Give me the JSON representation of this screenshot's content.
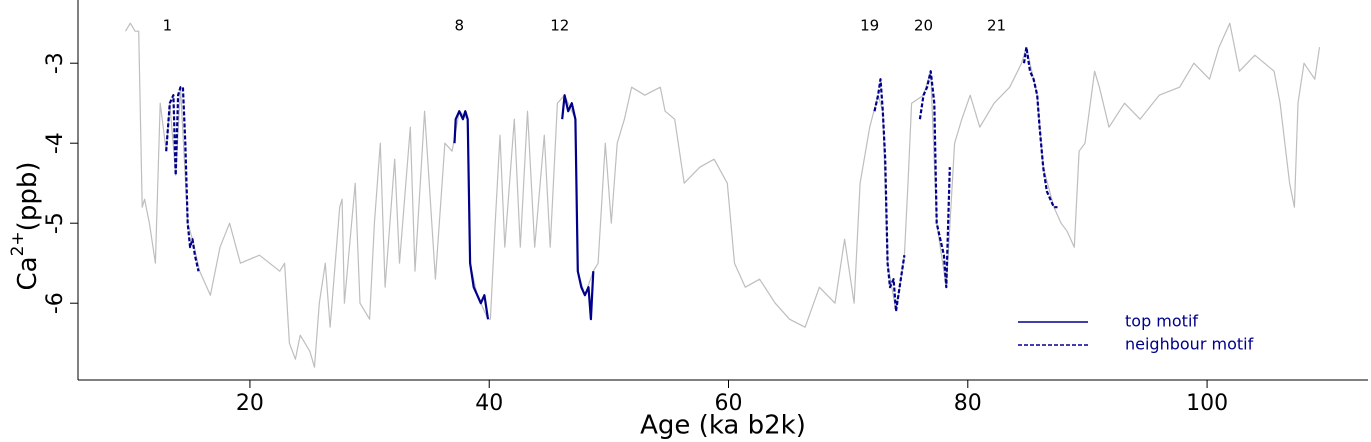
{
  "chart_data": {
    "type": "line",
    "xlabel": "Age (ka b2k)",
    "ylabel": [
      "Ca",
      "2+",
      "(ppb)"
    ],
    "xlim": [
      5.63,
      113.45
    ],
    "ylim": [
      -6.96,
      -2.21
    ],
    "xticks": [
      20,
      40,
      60,
      80,
      100
    ],
    "yticks": [
      -3,
      -4,
      -5,
      -6
    ],
    "legend": "bottom-right",
    "annotations": [
      {
        "text": "1",
        "x": 13.1
      },
      {
        "text": "8",
        "x": 37.5
      },
      {
        "text": "12",
        "x": 45.9
      },
      {
        "text": "19",
        "x": 71.8
      },
      {
        "text": "20",
        "x": 76.3
      },
      {
        "text": "21",
        "x": 82.4
      }
    ],
    "series": [
      {
        "color": "#bebebe",
        "dash": false,
        "x": [
          9.6,
          10.0,
          10.4,
          10.7,
          11.0,
          11.2,
          11.6,
          12.1,
          12.5,
          13.0,
          13.3,
          13.8,
          14.2,
          14.8,
          15.2,
          15.8,
          16.7,
          17.5,
          18.3,
          19.2,
          20.8,
          22.5,
          22.9,
          23.3,
          23.8,
          24.2,
          25.0,
          25.4,
          25.8,
          26.3,
          26.7,
          27.5,
          27.7,
          27.9,
          28.8,
          29.2,
          30.0,
          30.4,
          30.9,
          31.3,
          32.1,
          32.5,
          33.4,
          33.8,
          34.6,
          35.5,
          36.3,
          36.9,
          37.5,
          38.2,
          38.4,
          39.0,
          39.9,
          40.1,
          40.5,
          40.9,
          41.3,
          42.1,
          42.6,
          43.2,
          43.8,
          44.6,
          45.1,
          45.7,
          46.3,
          47.2,
          47.4,
          48.0,
          48.7,
          49.1,
          49.7,
          50.2,
          50.7,
          51.3,
          51.9,
          53.0,
          54.3,
          54.7,
          55.5,
          56.3,
          57.6,
          58.8,
          59.9,
          60.5,
          61.4,
          62.6,
          63.9,
          65.1,
          66.4,
          67.6,
          68.9,
          69.7,
          70.5,
          71.0,
          71.8,
          72.5,
          72.9,
          73.3,
          74.0,
          74.7,
          75.0,
          75.3,
          76.3,
          76.9,
          77.4,
          78.2,
          78.9,
          79.5,
          80.2,
          81.0,
          82.2,
          83.5,
          84.5,
          84.9,
          85.8,
          86.3,
          87.2,
          87.8,
          88.3,
          88.9,
          89.3,
          89.8,
          90.6,
          91.0,
          91.8,
          93.1,
          94.4,
          96.0,
          97.7,
          98.9,
          100.2,
          101.0,
          101.9,
          102.7,
          104.0,
          104.8,
          105.6,
          106.1,
          106.9,
          107.3,
          107.6,
          108.1,
          109.0,
          109.4
        ],
        "values": [
          -2.6,
          -2.5,
          -2.6,
          -2.6,
          -4.8,
          -4.7,
          -5.0,
          -5.5,
          -3.5,
          -4.1,
          -3.5,
          -4.4,
          -3.3,
          -5.0,
          -5.2,
          -5.6,
          -5.9,
          -5.3,
          -5.0,
          -5.5,
          -5.4,
          -5.6,
          -5.5,
          -6.5,
          -6.7,
          -6.4,
          -6.6,
          -6.8,
          -6.0,
          -5.5,
          -6.3,
          -4.8,
          -4.7,
          -6.0,
          -4.5,
          -6.0,
          -6.2,
          -5.0,
          -4.0,
          -5.8,
          -4.2,
          -5.5,
          -3.8,
          -5.6,
          -3.6,
          -5.7,
          -4.0,
          -4.1,
          -3.6,
          -3.7,
          -5.5,
          -5.9,
          -6.2,
          -6.2,
          -5.0,
          -3.9,
          -5.3,
          -3.7,
          -5.3,
          -3.6,
          -5.3,
          -3.9,
          -5.3,
          -3.5,
          -3.4,
          -3.7,
          -5.6,
          -5.9,
          -5.6,
          -5.5,
          -4.0,
          -5.0,
          -4.0,
          -3.7,
          -3.3,
          -3.4,
          -3.3,
          -3.6,
          -3.7,
          -4.5,
          -4.3,
          -4.2,
          -4.5,
          -5.5,
          -5.8,
          -5.7,
          -6.0,
          -6.2,
          -6.3,
          -5.8,
          -6.0,
          -5.2,
          -6.0,
          -4.5,
          -3.8,
          -3.4,
          -3.6,
          -5.5,
          -6.1,
          -5.4,
          -4.5,
          -3.5,
          -3.4,
          -3.1,
          -5.0,
          -5.8,
          -4.0,
          -3.7,
          -3.4,
          -3.8,
          -3.5,
          -3.3,
          -3.0,
          -2.8,
          -3.4,
          -4.3,
          -4.8,
          -5.0,
          -5.1,
          -5.3,
          -4.1,
          -4.0,
          -3.1,
          -3.3,
          -3.8,
          -3.5,
          -3.7,
          -3.4,
          -3.3,
          -3.0,
          -3.2,
          -2.8,
          -2.5,
          -3.1,
          -2.9,
          -3.0,
          -3.1,
          -3.5,
          -4.5,
          -4.8,
          -3.5,
          -3.0,
          -3.2,
          -2.8
        ]
      },
      {
        "name": "top motif",
        "color": "#00008b",
        "dash": false,
        "x": [
          37.1,
          37.2,
          37.5,
          37.8,
          38.0,
          38.2,
          38.4,
          38.7,
          39.0,
          39.3,
          39.6,
          39.9,
          null,
          46.1,
          46.3,
          46.6,
          46.9,
          47.2,
          47.4,
          47.7,
          48.0,
          48.3,
          48.5,
          48.7
        ],
        "values": [
          -4.0,
          -3.7,
          -3.6,
          -3.7,
          -3.6,
          -3.7,
          -5.5,
          -5.8,
          -5.9,
          -6.0,
          -5.9,
          -6.2,
          null,
          -3.7,
          -3.4,
          -3.6,
          -3.5,
          -3.7,
          -5.6,
          -5.8,
          -5.9,
          -5.8,
          -6.2,
          -5.6
        ]
      },
      {
        "name": "neighbour motif",
        "color": "#00008b",
        "dash": true,
        "x": [
          13.0,
          13.3,
          13.6,
          13.8,
          14.0,
          14.2,
          14.4,
          14.6,
          14.8,
          15.0,
          15.2,
          15.4,
          15.7,
          null,
          72.2,
          72.5,
          72.7,
          72.9,
          73.1,
          73.3,
          73.5,
          73.8,
          74.0,
          74.3,
          74.5,
          74.7,
          null,
          76.0,
          76.3,
          76.6,
          76.9,
          77.2,
          77.4,
          77.7,
          78.0,
          78.2,
          78.5,
          null,
          84.7,
          84.9,
          85.2,
          85.5,
          85.8,
          86.0,
          86.3,
          86.6,
          86.9,
          87.2,
          87.5
        ],
        "values": [
          -4.1,
          -3.5,
          -3.4,
          -4.4,
          -3.4,
          -3.3,
          -3.3,
          -4.0,
          -5.0,
          -5.3,
          -5.2,
          -5.4,
          -5.6,
          null,
          -3.6,
          -3.4,
          -3.2,
          -3.6,
          -4.2,
          -5.5,
          -5.8,
          -5.7,
          -6.1,
          -5.8,
          -5.6,
          -5.4,
          null,
          -3.7,
          -3.4,
          -3.3,
          -3.1,
          -3.5,
          -5.0,
          -5.2,
          -5.4,
          -5.8,
          -4.3,
          null,
          -3.0,
          -2.8,
          -3.1,
          -3.2,
          -3.4,
          -3.8,
          -4.3,
          -4.6,
          -4.7,
          -4.8,
          -4.8
        ]
      }
    ]
  }
}
